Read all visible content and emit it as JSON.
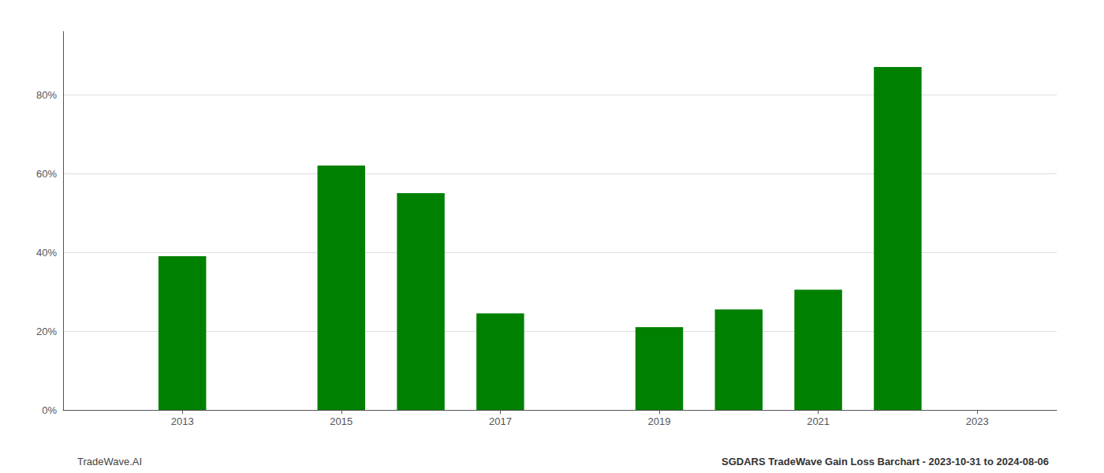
{
  "chart_data": {
    "type": "bar",
    "x": [
      2013,
      2015,
      2016,
      2017,
      2019,
      2020,
      2021,
      2022
    ],
    "values": [
      0.39,
      0.62,
      0.55,
      0.245,
      0.21,
      0.255,
      0.305,
      0.87
    ],
    "color": "#008000",
    "xlim": [
      2011.5,
      2024.0
    ],
    "xticks": [
      2013,
      2015,
      2017,
      2019,
      2021,
      2023
    ],
    "ylim": [
      0,
      0.96
    ],
    "yticks": [
      {
        "value": 0.0,
        "label": "0%"
      },
      {
        "value": 0.2,
        "label": "20%"
      },
      {
        "value": 0.4,
        "label": "40%"
      },
      {
        "value": 0.6,
        "label": "60%"
      },
      {
        "value": 0.8,
        "label": "80%"
      }
    ],
    "grid": true,
    "annotations": [
      "TradeWave.AI",
      "SGDARS TradeWave Gain Loss Barchart - 2023-10-31 to 2024-08-06"
    ]
  }
}
